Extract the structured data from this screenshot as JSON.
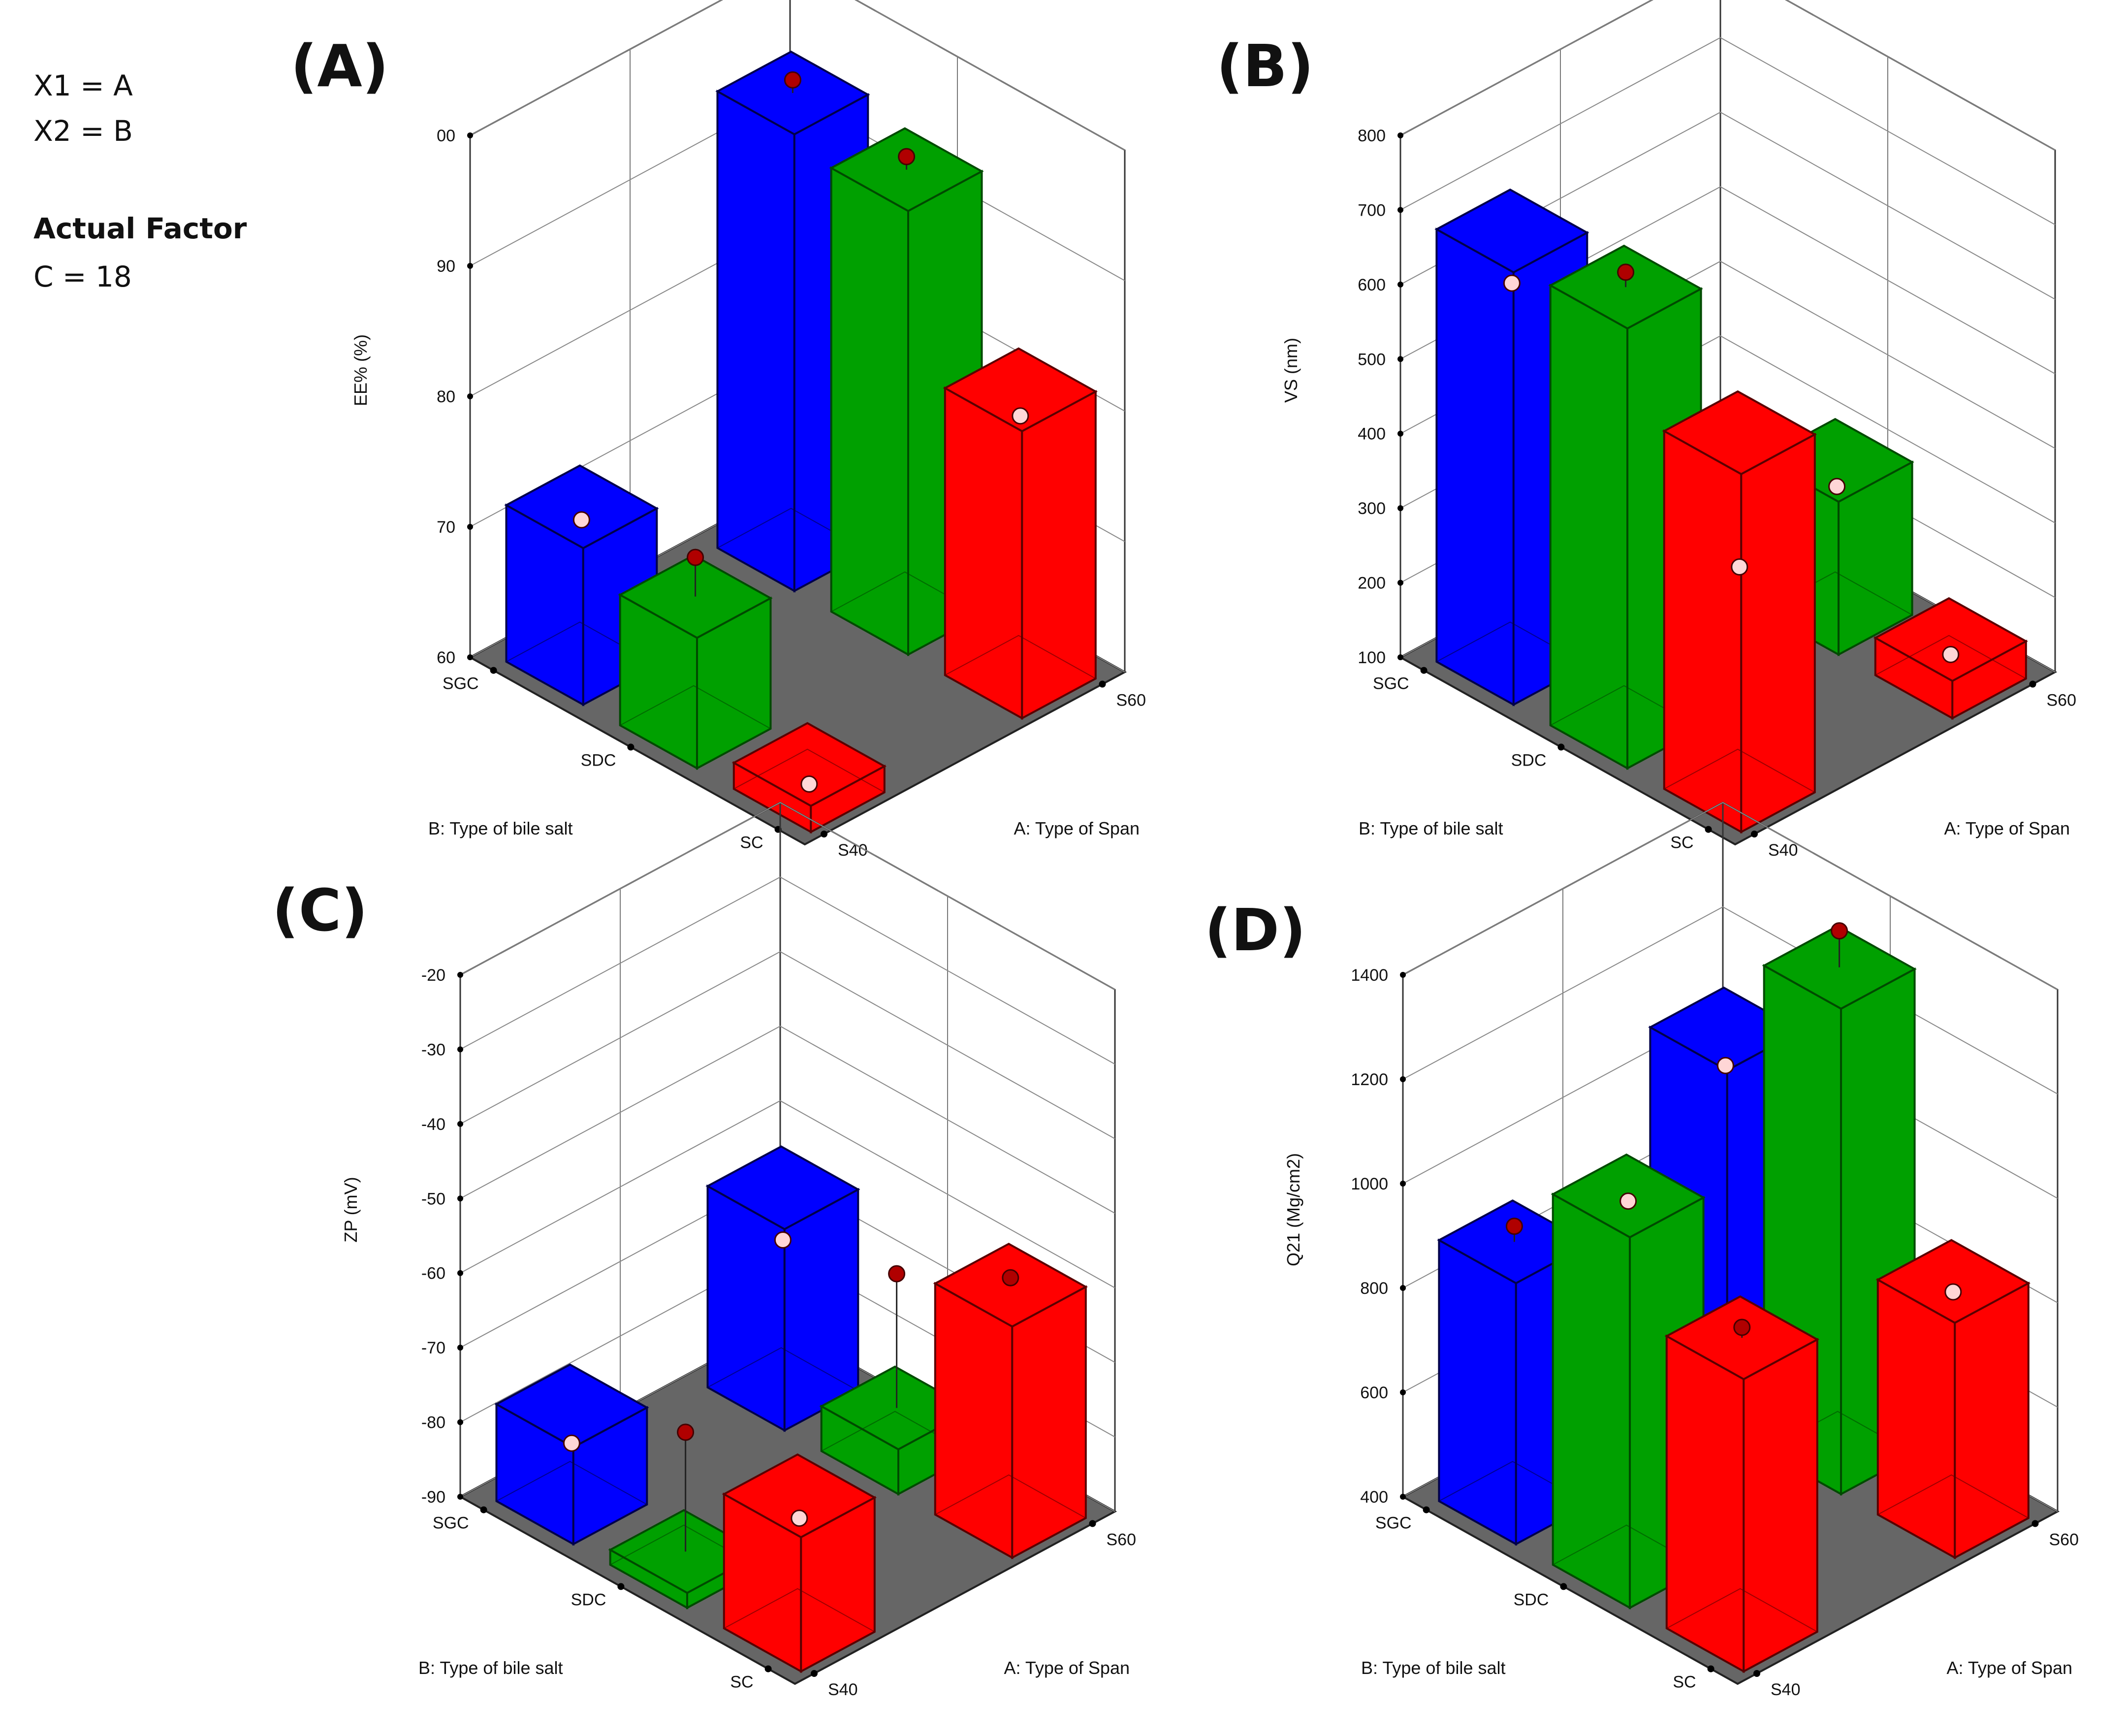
{
  "legend": {
    "x1": "X1 = A",
    "x2": "X2 = B",
    "actual_factor_title": "Actual Factor",
    "actual_factor_value": "C = 18"
  },
  "colors": {
    "S40_series": "#0000ff",
    "S60_series": "#00aa00",
    "third_series": "#ff0000",
    "floor": "#666666",
    "design_point_above": "#b00000",
    "design_point_below": "#ffd6d6"
  },
  "chart_data": [
    {
      "panel": "(A)",
      "type": "bar3d",
      "zlabel": "EE% (%)",
      "zticks": [
        "00",
        "90",
        "80",
        "70",
        "60"
      ],
      "zlim": [
        60,
        100
      ],
      "xlabel": "B: Type of bile salt",
      "ylabel": "A: Type of Span",
      "bile_salt_ticks": [
        "SGC",
        "SDC",
        "SC"
      ],
      "span_ticks": [
        "S40",
        "S60"
      ],
      "bars": [
        {
          "bile": "SGC",
          "span": "S40",
          "value": 72,
          "color": "blue",
          "point": 71
        },
        {
          "bile": "SDC",
          "span": "S40",
          "value": 70,
          "color": "green",
          "point": 73
        },
        {
          "bile": "SC",
          "span": "S40",
          "value": 62,
          "color": "red",
          "point": 60.5
        },
        {
          "bile": "SGC",
          "span": "S60",
          "value": 95,
          "color": "blue",
          "point": 96
        },
        {
          "bile": "SDC",
          "span": "S60",
          "value": 94,
          "color": "green",
          "point": 95
        },
        {
          "bile": "SC",
          "span": "S60",
          "value": 82,
          "color": "red",
          "point": 80
        }
      ]
    },
    {
      "panel": "(B)",
      "type": "bar3d",
      "zlabel": "VS (nm)",
      "zticks": [
        "800",
        "700",
        "600",
        "500",
        "400",
        "300",
        "200",
        "100"
      ],
      "zlim": [
        100,
        800
      ],
      "xlabel": "B: Type of bile salt",
      "ylabel": "A: Type of Span",
      "bile_salt_ticks": [
        "SGC",
        "SDC",
        "SC"
      ],
      "span_ticks": [
        "S40",
        "S60"
      ],
      "bars": [
        {
          "bile": "SGC",
          "span": "S40",
          "value": 680,
          "color": "blue",
          "point": 610
        },
        {
          "bile": "SDC",
          "span": "S40",
          "value": 690,
          "color": "green",
          "point": 710
        },
        {
          "bile": "SC",
          "span": "S40",
          "value": 580,
          "color": "red",
          "point": 400
        },
        {
          "bile": "SGC",
          "span": "S60",
          "value": 0,
          "color": "blue",
          "point": null
        },
        {
          "bile": "SDC",
          "span": "S60",
          "value": 305,
          "color": "green",
          "point": 270
        },
        {
          "bile": "SC",
          "span": "S60",
          "value": 150,
          "color": "red",
          "point": 130
        }
      ]
    },
    {
      "panel": "(C)",
      "type": "bar3d",
      "zlabel": "ZP (mV)",
      "zticks": [
        "-20",
        "-30",
        "-40",
        "-50",
        "-60",
        "-70",
        "-80",
        "-90"
      ],
      "zlim": [
        -90,
        -20
      ],
      "xlabel": "B: Type of bile salt",
      "ylabel": "A: Type of Span",
      "bile_salt_ticks": [
        "SGC",
        "SDC",
        "SC"
      ],
      "span_ticks": [
        "S40",
        "S60"
      ],
      "bars": [
        {
          "bile": "SGC",
          "span": "S40",
          "value": -77,
          "color": "blue",
          "point": -82
        },
        {
          "bile": "SDC",
          "span": "S40",
          "value": -88,
          "color": "green",
          "point": -72
        },
        {
          "bile": "SC",
          "span": "S40",
          "value": -72,
          "color": "red",
          "point": -75
        },
        {
          "bile": "SGC",
          "span": "S60",
          "value": -63,
          "color": "blue",
          "point": -70
        },
        {
          "bile": "SDC",
          "span": "S60",
          "value": -84,
          "color": "green",
          "point": -66
        },
        {
          "bile": "SC",
          "span": "S60",
          "value": -59,
          "color": "red",
          "point": -58
        }
      ]
    },
    {
      "panel": "(D)",
      "type": "bar3d",
      "zlabel": "Q21 (Mg/cm2)",
      "zticks": [
        "1400",
        "1200",
        "1000",
        "800",
        "600",
        "400"
      ],
      "zlim": [
        400,
        1400
      ],
      "xlabel": "B: Type of bile salt",
      "ylabel": "A: Type of Span",
      "bile_salt_ticks": [
        "SGC",
        "SDC",
        "SC"
      ],
      "span_ticks": [
        "S40",
        "S60"
      ],
      "bars": [
        {
          "bile": "SGC",
          "span": "S40",
          "value": 900,
          "color": "blue",
          "point": 930
        },
        {
          "bile": "SDC",
          "span": "S40",
          "value": 1110,
          "color": "green",
          "point": 1100
        },
        {
          "bile": "SC",
          "span": "S40",
          "value": 960,
          "color": "red",
          "point": 980
        },
        {
          "bile": "SGC",
          "span": "S60",
          "value": 1090,
          "color": "blue",
          "point": 1020
        },
        {
          "bile": "SDC",
          "span": "S60",
          "value": 1330,
          "color": "green",
          "point": 1400
        },
        {
          "bile": "SC",
          "span": "S60",
          "value": 850,
          "color": "red",
          "point": 830
        }
      ]
    }
  ]
}
